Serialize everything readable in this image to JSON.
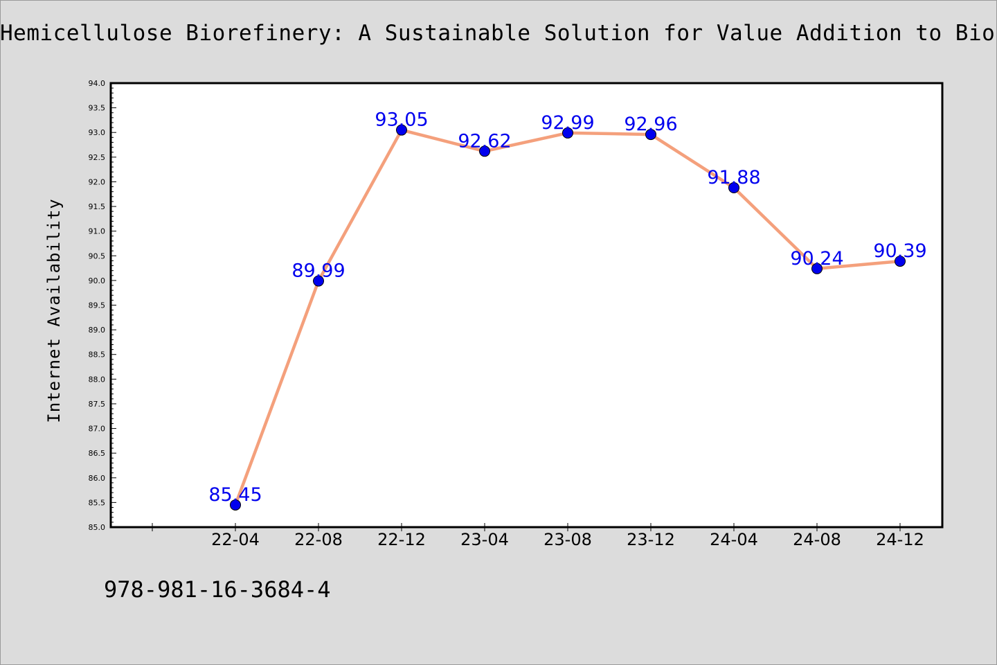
{
  "title": "Hemicellulose Biorefinery: A Sustainable Solution for Value Addition to Bio-Based",
  "footer_text": "978-981-16-3684-4",
  "colors": {
    "background": "#dcdcdc",
    "plot_background": "#ffffff",
    "line": "#f4a07c",
    "marker": "#0000ee",
    "label": "#0000ee"
  },
  "chart_data": {
    "type": "line",
    "title": "Hemicellulose Biorefinery: A Sustainable Solution for Value Addition to Bio-Based",
    "xlabel": "",
    "ylabel": "Internet Availability",
    "categories": [
      "22-04",
      "22-08",
      "22-12",
      "23-04",
      "23-08",
      "23-12",
      "24-04",
      "24-08",
      "24-12"
    ],
    "series": [
      {
        "values": [
          85.45,
          89.99,
          93.05,
          92.62,
          92.99,
          92.96,
          91.88,
          90.24,
          90.39
        ]
      }
    ],
    "data_labels": [
      "85.45",
      "89.99",
      "93.05",
      "92.62",
      "92.99",
      "92.96",
      "91.88",
      "90.24",
      "90.39"
    ],
    "ylim": [
      85.0,
      94.0
    ],
    "yticks": [
      "85.0",
      "85.5",
      "86.0",
      "86.5",
      "87.0",
      "87.5",
      "88.0",
      "88.5",
      "89.0",
      "89.5",
      "90.0",
      "90.5",
      "91.0",
      "91.5",
      "92.0",
      "92.5",
      "93.0",
      "93.5",
      "94.0"
    ],
    "grid": false,
    "legend": "none"
  }
}
